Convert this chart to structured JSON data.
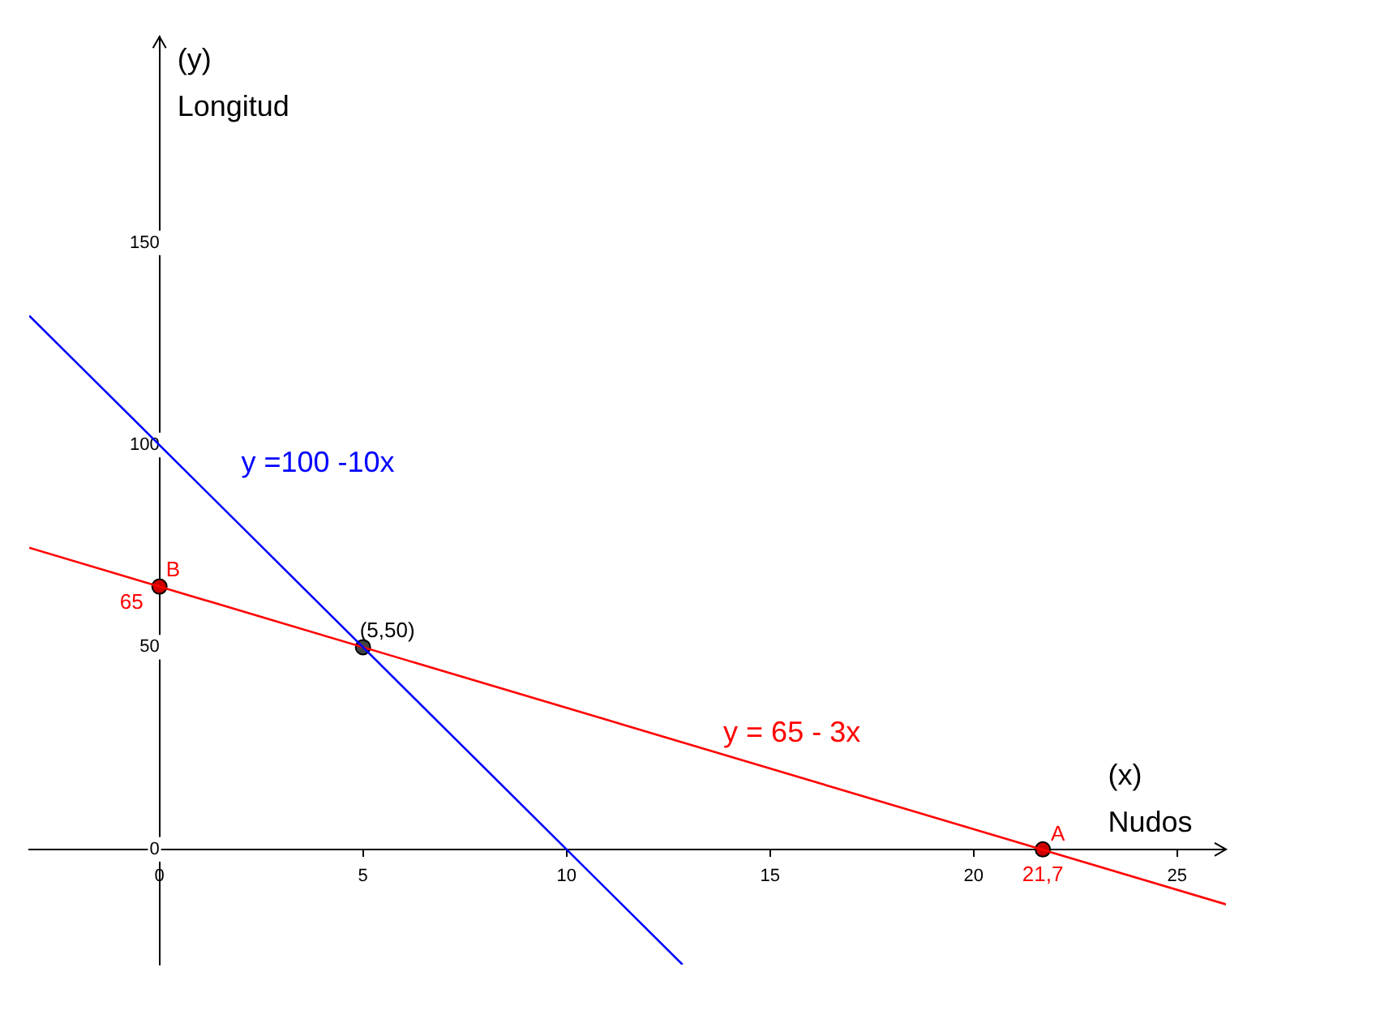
{
  "chart_data": {
    "type": "line",
    "xlabel": "(x)\nNudos",
    "ylabel": "(y)\nLongitud",
    "xlim": [
      -3.2,
      26.2
    ],
    "ylim": [
      -28.5,
      201
    ],
    "xticks": [
      0,
      5,
      10,
      15,
      20,
      25
    ],
    "yticks": [
      0,
      50,
      100,
      150
    ],
    "series": [
      {
        "name": "y =100 -10x",
        "color": "#0000ff",
        "x": [
          -3.2,
          12.85
        ],
        "values": [
          132,
          -28.5
        ]
      },
      {
        "name": "y = 65 - 3x",
        "color": "#ff0000",
        "x": [
          -3.2,
          26.2
        ],
        "values": [
          74.6,
          -13.6
        ]
      },
      {
        "type": "scatter",
        "colors": [
          "#cc0000",
          "#444444",
          "#cc0000"
        ],
        "x": [
          0,
          5,
          21.7
        ],
        "values": [
          65,
          50,
          0
        ],
        "marker": "circle"
      }
    ],
    "annotations": [
      {
        "text": "B",
        "x": 0,
        "y": 65
      },
      {
        "text": "65",
        "x": 0,
        "y": 65
      },
      {
        "text": "(5,50)",
        "x": 5,
        "y": 50
      },
      {
        "text": "A",
        "x": 21.7,
        "y": 0
      },
      {
        "text": "21,7",
        "x": 21.7,
        "y": 0
      }
    ],
    "grid": false,
    "legend": false,
    "marker": "none",
    "line_style": "solid"
  }
}
